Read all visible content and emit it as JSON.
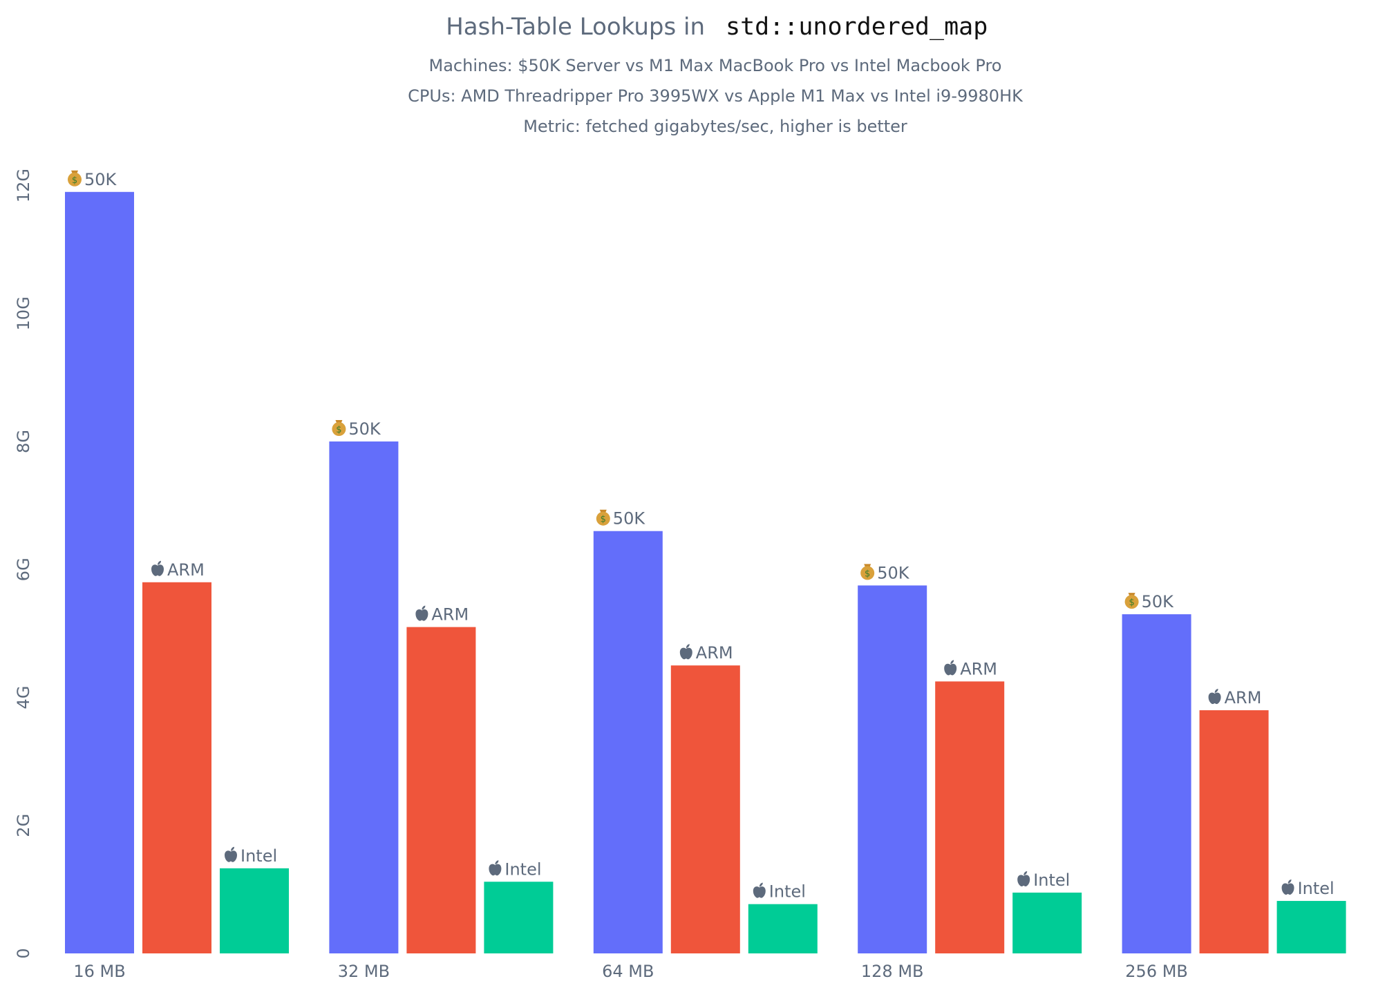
{
  "chart_data": {
    "type": "bar",
    "title": "Hash-Table Lookups in",
    "title_code": "std::unordered_map",
    "subtitles": [
      "Machines: $50K Server vs M1 Max MacBook Pro vs Intel Macbook Pro",
      "CPUs: AMD Threadripper Pro 3995WX vs Apple M1 Max vs Intel i9-9980HK",
      "Metric: fetched gigabytes/sec, higher is better"
    ],
    "categories": [
      "16 MB",
      "32 MB",
      "64 MB",
      "128 MB",
      "256 MB"
    ],
    "series": [
      {
        "name": "💰 50K",
        "color": "#636efa",
        "icon": "money-bag-icon",
        "text": "50K",
        "values": [
          11.9,
          8.0,
          6.6,
          5.75,
          5.3
        ]
      },
      {
        "name": " ARM",
        "color": "#ef553b",
        "icon": "apple-icon",
        "text": "ARM",
        "values": [
          5.8,
          5.1,
          4.5,
          4.25,
          3.8
        ]
      },
      {
        "name": " Intel",
        "color": "#00cc96",
        "icon": "apple-icon",
        "text": "Intel",
        "values": [
          1.33,
          1.12,
          0.77,
          0.95,
          0.82
        ]
      }
    ],
    "ylim": [
      0,
      12.2
    ],
    "yticks": [
      0,
      2,
      4,
      6,
      8,
      10,
      12
    ],
    "yticklabels": [
      "0",
      "2G",
      "4G",
      "6G",
      "8G",
      "10G",
      "12G"
    ],
    "xlabel": "",
    "ylabel": "",
    "grid": false,
    "legend": "none"
  }
}
